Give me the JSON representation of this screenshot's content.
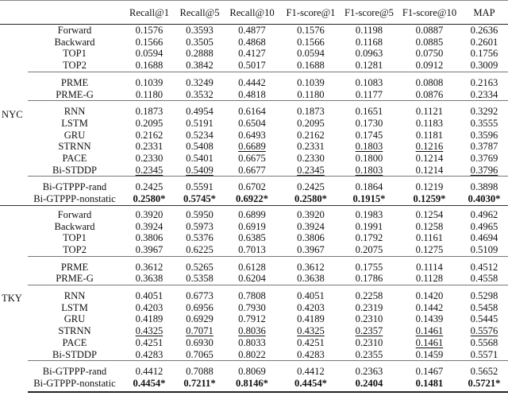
{
  "table": {
    "columns": [
      "",
      "",
      "Recall@1",
      "Recall@5",
      "Recall@10",
      "F1-score@1",
      "F1-score@5",
      "F1-score@10",
      "MAP"
    ],
    "cities": [
      {
        "name": "NYC",
        "groups": [
          [
            {
              "method": "Forward",
              "values": [
                "0.1576",
                "0.3593",
                "0.4877",
                "0.1576",
                "0.1198",
                "0.0887",
                "0.2636"
              ]
            },
            {
              "method": "Backward",
              "values": [
                "0.1566",
                "0.3505",
                "0.4868",
                "0.1566",
                "0.1168",
                "0.0885",
                "0.2601"
              ]
            },
            {
              "method": "TOP1",
              "values": [
                "0.0594",
                "0.2888",
                "0.4127",
                "0.0594",
                "0.0963",
                "0.0750",
                "0.1756"
              ]
            },
            {
              "method": "TOP2",
              "values": [
                "0.1688",
                "0.3842",
                "0.5017",
                "0.1688",
                "0.1281",
                "0.0912",
                "0.3009"
              ]
            }
          ],
          [
            {
              "method": "PRME",
              "values": [
                "0.1039",
                "0.3249",
                "0.4442",
                "0.1039",
                "0.1083",
                "0.0808",
                "0.2163"
              ]
            },
            {
              "method": "PRME-G",
              "values": [
                "0.1180",
                "0.3532",
                "0.4818",
                "0.1180",
                "0.1177",
                "0.0876",
                "0.2334"
              ]
            }
          ],
          [
            {
              "method": "RNN",
              "values": [
                "0.1873",
                "0.4954",
                "0.6164",
                "0.1873",
                "0.1651",
                "0.1121",
                "0.3292"
              ]
            },
            {
              "method": "LSTM",
              "values": [
                "0.2095",
                "0.5191",
                "0.6504",
                "0.2095",
                "0.1730",
                "0.1183",
                "0.3555"
              ]
            },
            {
              "method": "GRU",
              "values": [
                "0.2162",
                "0.5234",
                "0.6493",
                "0.2162",
                "0.1745",
                "0.1181",
                "0.3596"
              ]
            },
            {
              "method": "STRNN",
              "values": [
                "0.2331",
                "0.5408",
                "0.6689",
                "0.2331",
                "0.1803",
                "0.1216",
                "0.3787"
              ],
              "underline": [
                2,
                4,
                5
              ]
            },
            {
              "method": "PACE",
              "values": [
                "0.2330",
                "0.5401",
                "0.6675",
                "0.2330",
                "0.1800",
                "0.1214",
                "0.3769"
              ]
            },
            {
              "method": "Bi-STDDP",
              "values": [
                "0.2345",
                "0.5409",
                "0.6677",
                "0.2345",
                "0.1803",
                "0.1214",
                "0.3796"
              ],
              "underline": [
                0,
                1,
                3,
                4,
                6
              ]
            }
          ],
          [
            {
              "method": "Bi-GTPPP-rand",
              "values": [
                "0.2425",
                "0.5591",
                "0.6702",
                "0.2425",
                "0.1864",
                "0.1219",
                "0.3898"
              ]
            },
            {
              "method": "Bi-GTPPP-nonstatic",
              "values": [
                "0.2580*",
                "0.5745*",
                "0.6922*",
                "0.2580*",
                "0.1915*",
                "0.1259*",
                "0.4030*"
              ],
              "bold": [
                0,
                1,
                2,
                3,
                4,
                5,
                6
              ]
            }
          ]
        ]
      },
      {
        "name": "TKY",
        "groups": [
          [
            {
              "method": "Forward",
              "values": [
                "0.3920",
                "0.5950",
                "0.6899",
                "0.3920",
                "0.1983",
                "0.1254",
                "0.4962"
              ]
            },
            {
              "method": "Backward",
              "values": [
                "0.3924",
                "0.5973",
                "0.6919",
                "0.3924",
                "0.1991",
                "0.1258",
                "0.4965"
              ]
            },
            {
              "method": "TOP1",
              "values": [
                "0.3806",
                "0.5376",
                "0.6385",
                "0.3806",
                "0.1792",
                "0.1161",
                "0.4694"
              ]
            },
            {
              "method": "TOP2",
              "values": [
                "0.3967",
                "0.6225",
                "0.7013",
                "0.3967",
                "0.2075",
                "0.1275",
                "0.5109"
              ]
            }
          ],
          [
            {
              "method": "PRME",
              "values": [
                "0.3612",
                "0.5265",
                "0.6128",
                "0.3612",
                "0.1755",
                "0.1114",
                "0.4512"
              ]
            },
            {
              "method": "PRME-G",
              "values": [
                "0.3638",
                "0.5358",
                "0.6204",
                "0.3638",
                "0.1786",
                "0.1128",
                "0.4558"
              ]
            }
          ],
          [
            {
              "method": "RNN",
              "values": [
                "0.4051",
                "0.6773",
                "0.7808",
                "0.4051",
                "0.2258",
                "0.1420",
                "0.5298"
              ]
            },
            {
              "method": "LSTM",
              "values": [
                "0.4203",
                "0.6956",
                "0.7930",
                "0.4203",
                "0.2319",
                "0.1442",
                "0.5458"
              ]
            },
            {
              "method": "GRU",
              "values": [
                "0.4189",
                "0.6929",
                "0.7912",
                "0.4189",
                "0.2310",
                "0.1439",
                "0.5445"
              ]
            },
            {
              "method": "STRNN",
              "values": [
                "0.4325",
                "0.7071",
                "0.8036",
                "0.4325",
                "0.2357",
                "0.1461",
                "0.5576"
              ],
              "underline": [
                0,
                1,
                2,
                3,
                4,
                5,
                6
              ]
            },
            {
              "method": "PACE",
              "values": [
                "0.4251",
                "0.6930",
                "0.8033",
                "0.4251",
                "0.2310",
                "0.1461",
                "0.5568"
              ],
              "underline": [
                5
              ]
            },
            {
              "method": "Bi-STDDP",
              "values": [
                "0.4283",
                "0.7065",
                "0.8022",
                "0.4283",
                "0.2355",
                "0.1459",
                "0.5571"
              ]
            }
          ],
          [
            {
              "method": "Bi-GTPPP-rand",
              "values": [
                "0.4412",
                "0.7088",
                "0.8069",
                "0.4412",
                "0.2363",
                "0.1467",
                "0.5652"
              ]
            },
            {
              "method": "Bi-GTPPP-nonstatic",
              "values": [
                "0.4454*",
                "0.7211*",
                "0.8146*",
                "0.4454*",
                "0.2404",
                "0.1481",
                "0.5721*"
              ],
              "bold": [
                0,
                1,
                2,
                3,
                4,
                5,
                6
              ]
            }
          ]
        ]
      }
    ]
  }
}
